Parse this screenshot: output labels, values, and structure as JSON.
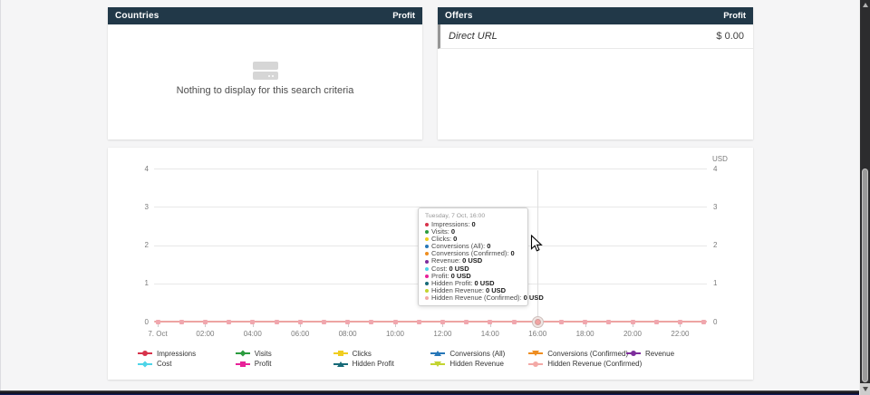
{
  "panels": {
    "countries": {
      "title": "Countries",
      "value_column": "Profit",
      "empty_message": "Nothing to display for this search criteria"
    },
    "offers": {
      "title": "Offers",
      "value_column": "Profit",
      "rows": [
        {
          "label": "Direct URL",
          "value": "$ 0.00"
        }
      ]
    }
  },
  "chart_data": {
    "type": "line",
    "title": "",
    "unit_label": "USD",
    "ylim": [
      0,
      4
    ],
    "y_ticks": [
      0,
      1,
      2,
      3,
      4
    ],
    "grid": true,
    "legend_position": "bottom",
    "x_categories": [
      "00:00",
      "01:00",
      "02:00",
      "03:00",
      "04:00",
      "05:00",
      "06:00",
      "07:00",
      "08:00",
      "09:00",
      "10:00",
      "11:00",
      "12:00",
      "13:00",
      "14:00",
      "15:00",
      "16:00",
      "17:00",
      "18:00",
      "19:00",
      "20:00",
      "21:00",
      "22:00",
      "23:00"
    ],
    "x_tick_labels": [
      "7. Oct",
      "02:00",
      "04:00",
      "06:00",
      "08:00",
      "10:00",
      "12:00",
      "14:00",
      "16:00",
      "18:00",
      "20:00",
      "22:00"
    ],
    "series": [
      {
        "name": "Impressions",
        "color": "#d7334b",
        "marker": "circle",
        "values": [
          0,
          0,
          0,
          0,
          0,
          0,
          0,
          0,
          0,
          0,
          0,
          0,
          0,
          0,
          0,
          0,
          0,
          0,
          0,
          0,
          0,
          0,
          0,
          0
        ]
      },
      {
        "name": "Visits",
        "color": "#2b9c3f",
        "marker": "diamond",
        "values": [
          0,
          0,
          0,
          0,
          0,
          0,
          0,
          0,
          0,
          0,
          0,
          0,
          0,
          0,
          0,
          0,
          0,
          0,
          0,
          0,
          0,
          0,
          0,
          0
        ]
      },
      {
        "name": "Clicks",
        "color": "#f0cd20",
        "marker": "square",
        "values": [
          0,
          0,
          0,
          0,
          0,
          0,
          0,
          0,
          0,
          0,
          0,
          0,
          0,
          0,
          0,
          0,
          0,
          0,
          0,
          0,
          0,
          0,
          0,
          0
        ]
      },
      {
        "name": "Conversions (All)",
        "color": "#2677b8",
        "marker": "triangle",
        "values": [
          0,
          0,
          0,
          0,
          0,
          0,
          0,
          0,
          0,
          0,
          0,
          0,
          0,
          0,
          0,
          0,
          0,
          0,
          0,
          0,
          0,
          0,
          0,
          0
        ]
      },
      {
        "name": "Conversions (Confirmed)",
        "color": "#ee8d20",
        "marker": "triangle-down",
        "values": [
          0,
          0,
          0,
          0,
          0,
          0,
          0,
          0,
          0,
          0,
          0,
          0,
          0,
          0,
          0,
          0,
          0,
          0,
          0,
          0,
          0,
          0,
          0,
          0
        ]
      },
      {
        "name": "Revenue",
        "color": "#7d2d9c",
        "marker": "circle",
        "values": [
          0,
          0,
          0,
          0,
          0,
          0,
          0,
          0,
          0,
          0,
          0,
          0,
          0,
          0,
          0,
          0,
          0,
          0,
          0,
          0,
          0,
          0,
          0,
          0
        ]
      },
      {
        "name": "Cost",
        "color": "#4ed4e8",
        "marker": "diamond",
        "values": [
          0,
          0,
          0,
          0,
          0,
          0,
          0,
          0,
          0,
          0,
          0,
          0,
          0,
          0,
          0,
          0,
          0,
          0,
          0,
          0,
          0,
          0,
          0,
          0
        ]
      },
      {
        "name": "Profit",
        "color": "#e82299",
        "marker": "square",
        "values": [
          0,
          0,
          0,
          0,
          0,
          0,
          0,
          0,
          0,
          0,
          0,
          0,
          0,
          0,
          0,
          0,
          0,
          0,
          0,
          0,
          0,
          0,
          0,
          0
        ]
      },
      {
        "name": "Hidden Profit",
        "color": "#176a78",
        "marker": "triangle",
        "values": [
          0,
          0,
          0,
          0,
          0,
          0,
          0,
          0,
          0,
          0,
          0,
          0,
          0,
          0,
          0,
          0,
          0,
          0,
          0,
          0,
          0,
          0,
          0,
          0
        ]
      },
      {
        "name": "Hidden Revenue",
        "color": "#c3d430",
        "marker": "triangle-down",
        "values": [
          0,
          0,
          0,
          0,
          0,
          0,
          0,
          0,
          0,
          0,
          0,
          0,
          0,
          0,
          0,
          0,
          0,
          0,
          0,
          0,
          0,
          0,
          0,
          0
        ]
      },
      {
        "name": "Hidden Revenue (Confirmed)",
        "color": "#f3a9a6",
        "marker": "circle",
        "values": [
          0,
          0,
          0,
          0,
          0,
          0,
          0,
          0,
          0,
          0,
          0,
          0,
          0,
          0,
          0,
          0,
          0,
          0,
          0,
          0,
          0,
          0,
          0,
          0
        ]
      }
    ],
    "hover": {
      "x_index": 16,
      "tooltip": {
        "title": "Tuesday, 7 Oct, 16:00",
        "items": [
          {
            "label": "Impressions",
            "value": "0"
          },
          {
            "label": "Visits",
            "value": "0"
          },
          {
            "label": "Clicks",
            "value": "0"
          },
          {
            "label": "Conversions (All)",
            "value": "0"
          },
          {
            "label": "Conversions (Confirmed)",
            "value": "0"
          },
          {
            "label": "Revenue",
            "value": "0 USD"
          },
          {
            "label": "Cost",
            "value": "0 USD"
          },
          {
            "label": "Profit",
            "value": "0 USD"
          },
          {
            "label": "Hidden Profit",
            "value": "0 USD"
          },
          {
            "label": "Hidden Revenue",
            "value": "0 USD"
          },
          {
            "label": "Hidden Revenue (Confirmed)",
            "value": "0 USD"
          }
        ]
      }
    }
  },
  "colors": {
    "panel_header_bg": "#213848",
    "page_bg": "#f5f5f6",
    "zero_line": "#eda4a2",
    "point_fill": "#f0a7ae"
  }
}
